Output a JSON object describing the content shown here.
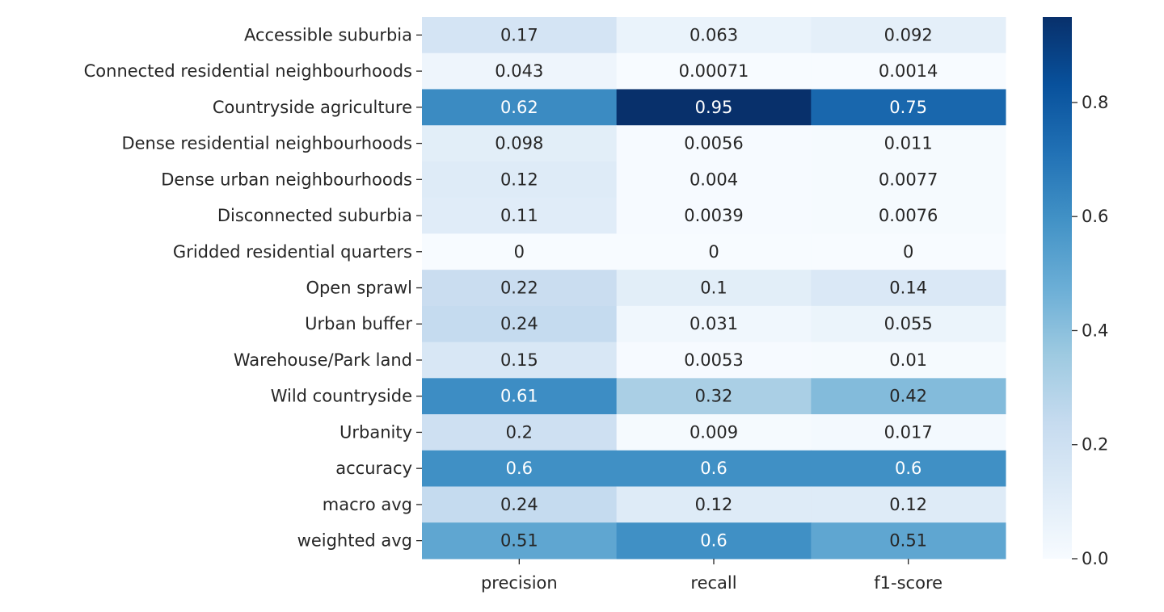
{
  "chart_data": {
    "type": "heatmap",
    "title": "",
    "xlabel": "",
    "ylabel": "",
    "rows": [
      "Accessible suburbia",
      "Connected residential neighbourhoods",
      "Countryside agriculture",
      "Dense residential neighbourhoods",
      "Dense urban neighbourhoods",
      "Disconnected suburbia",
      "Gridded residential quarters",
      "Open sprawl",
      "Urban buffer",
      "Warehouse/Park land",
      "Wild countryside",
      "Urbanity",
      "accuracy",
      "macro avg",
      "weighted avg"
    ],
    "columns": [
      "precision",
      "recall",
      "f1-score"
    ],
    "values": [
      [
        0.17,
        0.063,
        0.092
      ],
      [
        0.043,
        0.00071,
        0.0014
      ],
      [
        0.62,
        0.95,
        0.75
      ],
      [
        0.098,
        0.0056,
        0.011
      ],
      [
        0.12,
        0.004,
        0.0077
      ],
      [
        0.11,
        0.0039,
        0.0076
      ],
      [
        0,
        0,
        0
      ],
      [
        0.22,
        0.1,
        0.14
      ],
      [
        0.24,
        0.031,
        0.055
      ],
      [
        0.15,
        0.0053,
        0.01
      ],
      [
        0.61,
        0.32,
        0.42
      ],
      [
        0.2,
        0.009,
        0.017
      ],
      [
        0.6,
        0.6,
        0.6
      ],
      [
        0.24,
        0.12,
        0.12
      ],
      [
        0.51,
        0.6,
        0.51
      ]
    ],
    "annotations": [
      [
        "0.17",
        "0.063",
        "0.092"
      ],
      [
        "0.043",
        "0.00071",
        "0.0014"
      ],
      [
        "0.62",
        "0.95",
        "0.75"
      ],
      [
        "0.098",
        "0.0056",
        "0.011"
      ],
      [
        "0.12",
        "0.004",
        "0.0077"
      ],
      [
        "0.11",
        "0.0039",
        "0.0076"
      ],
      [
        "0",
        "0",
        "0"
      ],
      [
        "0.22",
        "0.1",
        "0.14"
      ],
      [
        "0.24",
        "0.031",
        "0.055"
      ],
      [
        "0.15",
        "0.0053",
        "0.01"
      ],
      [
        "0.61",
        "0.32",
        "0.42"
      ],
      [
        "0.2",
        "0.009",
        "0.017"
      ],
      [
        "0.6",
        "0.6",
        "0.6"
      ],
      [
        "0.24",
        "0.12",
        "0.12"
      ],
      [
        "0.51",
        "0.6",
        "0.51"
      ]
    ],
    "colormap": "Blues",
    "colorbar": {
      "vmin": 0,
      "vmax": 0.95,
      "ticks": [
        0.0,
        0.2,
        0.4,
        0.6,
        0.8
      ],
      "tick_labels": [
        "0.0",
        "0.2",
        "0.4",
        "0.6",
        "0.8"
      ]
    },
    "grid": false,
    "legend": "colorbar-right"
  }
}
